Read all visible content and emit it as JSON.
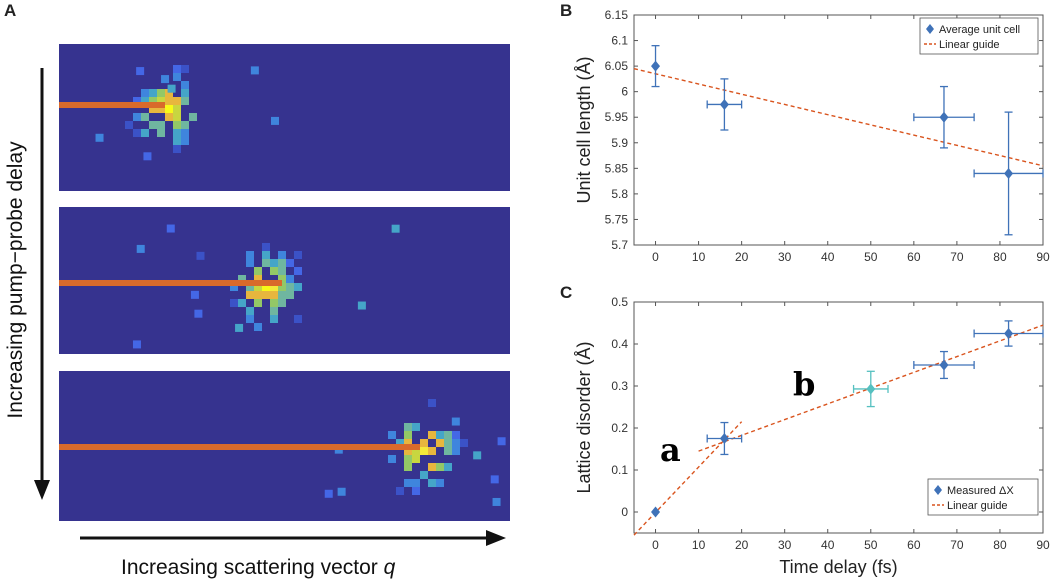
{
  "figure": {
    "panel_letters": [
      "A",
      "B",
      "C"
    ],
    "panel_a": {
      "y_arrow_label": "Increasing pump−probe delay",
      "x_arrow_label": "Increasing scattering vector ",
      "x_arrow_var": "q",
      "colors": {
        "background": "#36338f",
        "bar": "#d96a2b"
      }
    },
    "annotations": {
      "a": "a",
      "b": "b"
    }
  },
  "chart_data": [
    {
      "type": "scatter",
      "panel": "B",
      "title": "",
      "xlabel": "",
      "ylabel": "Unit cell length (Å)",
      "xlim": [
        -5,
        90
      ],
      "ylim": [
        5.7,
        6.15
      ],
      "xticks": [
        0,
        10,
        20,
        30,
        40,
        50,
        60,
        70,
        80,
        90
      ],
      "yticks": [
        5.7,
        5.75,
        5.8,
        5.85,
        5.9,
        5.95,
        6.0,
        6.05,
        6.1,
        6.15
      ],
      "ytick_labels": [
        "5.7",
        "5.75",
        "5.8",
        "5.85",
        "5.9",
        "5.95",
        "6",
        "6.05",
        "6.1",
        "6.15"
      ],
      "legend": "top-right",
      "series": [
        {
          "name": "Average unit cell",
          "kind": "points",
          "color": "#3f72b8",
          "points": [
            {
              "x": 0,
              "y": 6.05,
              "xerr": 0,
              "yerr": 0.04
            },
            {
              "x": 16,
              "y": 5.975,
              "xerr": 4,
              "yerr": 0.05
            },
            {
              "x": 67,
              "y": 5.95,
              "xerr": 7,
              "yerr": 0.06
            },
            {
              "x": 82,
              "y": 5.84,
              "xerr": 8,
              "yerr": 0.12
            }
          ]
        },
        {
          "name": "Linear guide",
          "kind": "line",
          "color": "#d9541e",
          "x": [
            -5,
            90
          ],
          "y": [
            6.045,
            5.855
          ]
        }
      ]
    },
    {
      "type": "scatter",
      "panel": "C",
      "title": "",
      "xlabel": "Time delay (fs)",
      "ylabel": "Lattice disorder (Å)",
      "xlim": [
        -5,
        90
      ],
      "ylim": [
        -0.05,
        0.5
      ],
      "xticks": [
        0,
        10,
        20,
        30,
        40,
        50,
        60,
        70,
        80,
        90
      ],
      "yticks": [
        0,
        0.1,
        0.2,
        0.3,
        0.4,
        0.5
      ],
      "ytick_labels": [
        "0",
        "0.1",
        "0.2",
        "0.3",
        "0.4",
        "0.5"
      ],
      "legend": "bottom-right",
      "series": [
        {
          "name": "Measured ΔX",
          "kind": "points",
          "color": "#3f72b8",
          "points": [
            {
              "x": 0,
              "y": 0.0,
              "xerr": 0,
              "yerr": 0
            },
            {
              "x": 16,
              "y": 0.175,
              "xerr": 4,
              "yerr": 0.038
            },
            {
              "x": 50,
              "y": 0.293,
              "xerr": 4,
              "yerr": 0.042,
              "color": "#55c0c0"
            },
            {
              "x": 67,
              "y": 0.35,
              "xerr": 7,
              "yerr": 0.032
            },
            {
              "x": 82,
              "y": 0.425,
              "xerr": 8,
              "yerr": 0.03
            }
          ]
        },
        {
          "name": "Linear guide",
          "kind": "line",
          "color": "#d9541e",
          "segments": [
            {
              "x": [
                -5,
                20
              ],
              "y": [
                -0.055,
                0.215
              ]
            },
            {
              "x": [
                10,
                90
              ],
              "y": [
                0.145,
                0.445
              ]
            }
          ]
        }
      ]
    }
  ]
}
